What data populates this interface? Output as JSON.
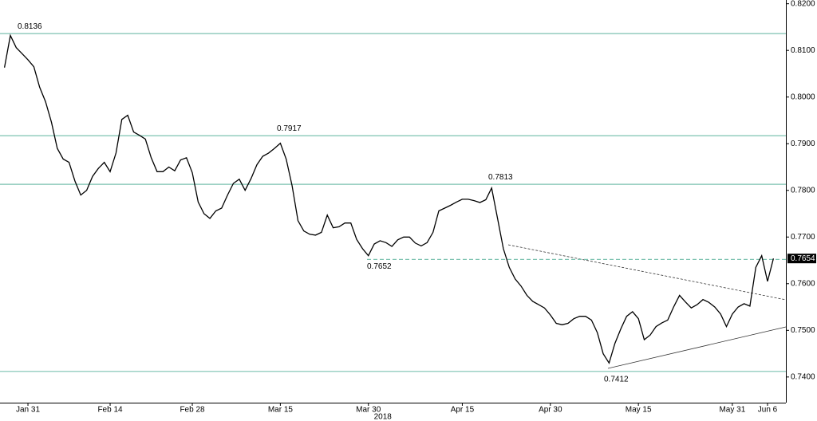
{
  "chart_data": {
    "type": "line",
    "categories": [
      null,
      null,
      null,
      null,
      "Jan 31",
      null,
      null,
      null,
      null,
      null,
      null,
      null,
      null,
      null,
      null,
      null,
      null,
      null,
      "Feb 14",
      null,
      null,
      null,
      null,
      null,
      null,
      null,
      null,
      null,
      null,
      null,
      null,
      null,
      "Feb 28",
      null,
      null,
      null,
      null,
      null,
      null,
      null,
      null,
      null,
      null,
      null,
      null,
      null,
      null,
      "Mar 15",
      null,
      null,
      null,
      null,
      null,
      null,
      null,
      null,
      null,
      null,
      null,
      null,
      null,
      null,
      "Mar 30",
      null,
      null,
      null,
      null,
      null,
      null,
      null,
      null,
      null,
      null,
      null,
      null,
      null,
      null,
      null,
      "Apr 15",
      null,
      null,
      null,
      null,
      null,
      null,
      null,
      null,
      null,
      null,
      null,
      null,
      null,
      null,
      "Apr 30",
      null,
      null,
      null,
      null,
      null,
      null,
      null,
      null,
      null,
      null,
      null,
      null,
      null,
      null,
      "May 15",
      null,
      null,
      null,
      null,
      null,
      null,
      null,
      null,
      null,
      null,
      null,
      null,
      null,
      null,
      null,
      "May 31",
      null,
      null,
      null,
      null,
      null,
      "Jun 6",
      null
    ],
    "values": [
      0.8063,
      0.8132,
      0.8106,
      0.8093,
      0.808,
      0.8065,
      0.8021,
      0.799,
      0.7946,
      0.789,
      0.7867,
      0.786,
      0.782,
      0.779,
      0.78,
      0.783,
      0.7847,
      0.786,
      0.784,
      0.788,
      0.7952,
      0.7961,
      0.7925,
      0.7918,
      0.791,
      0.787,
      0.784,
      0.784,
      0.785,
      0.7842,
      0.7865,
      0.787,
      0.7838,
      0.7775,
      0.775,
      0.774,
      0.7756,
      0.7762,
      0.779,
      0.7815,
      0.7824,
      0.78,
      0.7825,
      0.7855,
      0.7873,
      0.788,
      0.789,
      0.7901,
      0.7867,
      0.781,
      0.7735,
      0.7713,
      0.7706,
      0.7704,
      0.771,
      0.7747,
      0.772,
      0.7722,
      0.773,
      0.773,
      0.7695,
      0.7675,
      0.766,
      0.7685,
      0.7692,
      0.7688,
      0.768,
      0.7694,
      0.77,
      0.77,
      0.7687,
      0.7681,
      0.7688,
      0.771,
      0.7756,
      0.7762,
      0.7768,
      0.7775,
      0.7781,
      0.7781,
      0.7778,
      0.7774,
      0.778,
      0.7805,
      0.774,
      0.7675,
      0.7635,
      0.761,
      0.7595,
      0.7575,
      0.7562,
      0.7555,
      0.7548,
      0.7533,
      0.7515,
      0.7512,
      0.7515,
      0.7525,
      0.753,
      0.753,
      0.7522,
      0.7495,
      0.745,
      0.743,
      0.7472,
      0.7503,
      0.753,
      0.754,
      0.7525,
      0.748,
      0.749,
      0.7508,
      0.7516,
      0.7522,
      0.755,
      0.7575,
      0.7561,
      0.7548,
      0.7555,
      0.7566,
      0.756,
      0.755,
      0.7535,
      0.7508,
      0.7535,
      0.755,
      0.7557,
      0.7552,
      0.7635,
      0.766,
      0.7605,
      0.7654
    ],
    "color": "#000000",
    "x_label": "2018",
    "ylim": [
      0.7345,
      0.8208
    ],
    "yticks": [
      {
        "value": 0.74,
        "label": "0.7400"
      },
      {
        "value": 0.75,
        "label": "0.7500"
      },
      {
        "value": 0.76,
        "label": "0.7600"
      },
      {
        "value": 0.77,
        "label": "0.7700"
      },
      {
        "value": 0.78,
        "label": "0.7800"
      },
      {
        "value": 0.79,
        "label": "0.7900"
      },
      {
        "value": 0.8,
        "label": "0.8000"
      },
      {
        "value": 0.81,
        "label": "0.8100"
      },
      {
        "value": 0.82,
        "label": "0.8200"
      }
    ],
    "levels": [
      0.8136,
      0.7917,
      0.7813,
      0.7412
    ],
    "dashed_level": 0.7652,
    "level_color": "#7cc2b0",
    "last_price": 0.7654
  }
}
